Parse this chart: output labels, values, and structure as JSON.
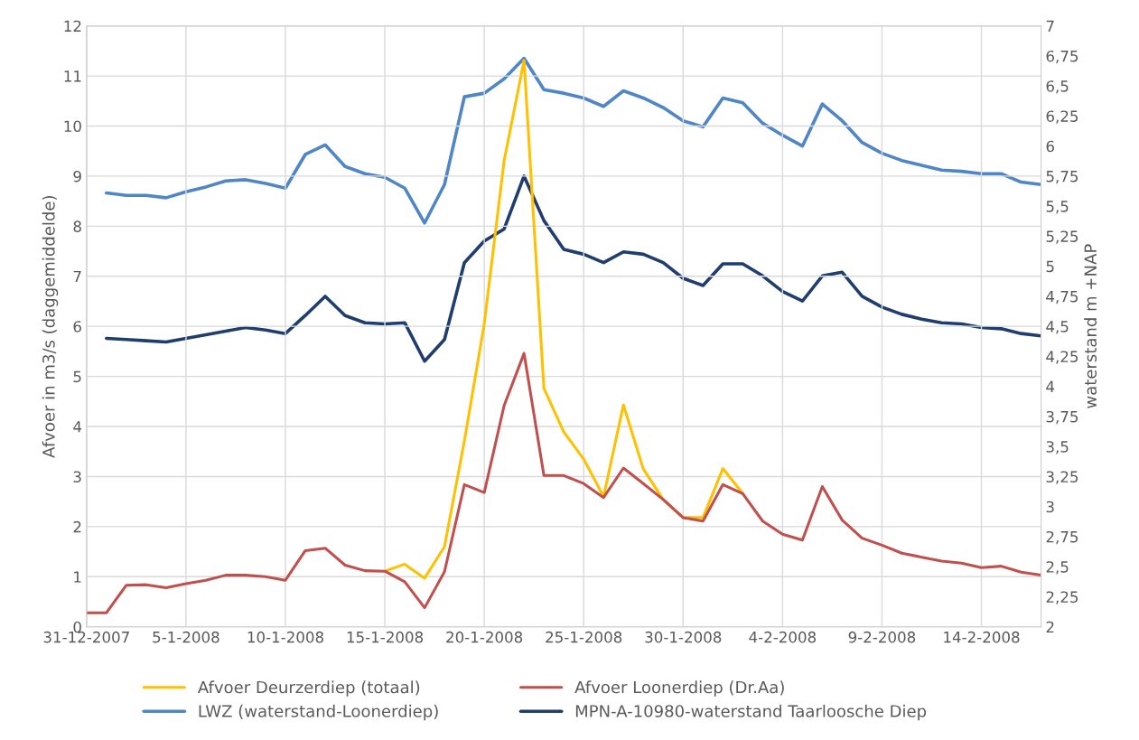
{
  "chart_data": {
    "type": "line",
    "ylabel": "Afvoer in m3/s (daggemiddelde)",
    "y2label": "waterstand m +NAP",
    "x": [
      "2007-12-31",
      "2008-01-01",
      "2008-01-02",
      "2008-01-03",
      "2008-01-04",
      "2008-01-05",
      "2008-01-06",
      "2008-01-07",
      "2008-01-08",
      "2008-01-09",
      "2008-01-10",
      "2008-01-11",
      "2008-01-12",
      "2008-01-13",
      "2008-01-14",
      "2008-01-15",
      "2008-01-16",
      "2008-01-17",
      "2008-01-18",
      "2008-01-19",
      "2008-01-20",
      "2008-01-21",
      "2008-01-22",
      "2008-01-23",
      "2008-01-24",
      "2008-01-25",
      "2008-01-26",
      "2008-01-27",
      "2008-01-28",
      "2008-01-29",
      "2008-01-30",
      "2008-01-31",
      "2008-02-01",
      "2008-02-02",
      "2008-02-03",
      "2008-02-04",
      "2008-02-05",
      "2008-02-06",
      "2008-02-07",
      "2008-02-08",
      "2008-02-09",
      "2008-02-10",
      "2008-02-11",
      "2008-02-12",
      "2008-02-13",
      "2008-02-14",
      "2008-02-15",
      "2008-02-16",
      "2008-02-17"
    ],
    "series": [
      {
        "name": "Afvoer Deurzerdiep (totaal)",
        "color": "#ffc000",
        "values": [
          null,
          null,
          null,
          null,
          null,
          null,
          null,
          null,
          null,
          null,
          null,
          null,
          null,
          null,
          null,
          1.11,
          1.25,
          0.97,
          1.6,
          3.71,
          6.05,
          9.31,
          11.31,
          4.76,
          3.89,
          3.35,
          2.6,
          4.43,
          3.15,
          2.54,
          2.18,
          2.18,
          3.16,
          2.66,
          null,
          null,
          null,
          null,
          null,
          null,
          null,
          null,
          null,
          null,
          null,
          null,
          null,
          null,
          null
        ]
      },
      {
        "name": "Afvoer Loonerdiep (Dr.Aa)",
        "color": "#c0504d",
        "values": [
          0.28,
          0.28,
          0.83,
          0.84,
          0.78,
          0.86,
          0.93,
          1.03,
          1.03,
          1.0,
          0.93,
          1.52,
          1.57,
          1.23,
          1.12,
          1.11,
          0.9,
          0.38,
          1.1,
          2.84,
          2.68,
          4.42,
          5.46,
          3.02,
          3.02,
          2.86,
          2.58,
          3.17,
          2.86,
          2.54,
          2.18,
          2.11,
          2.84,
          2.66,
          2.11,
          1.85,
          1.73,
          2.8,
          2.13,
          1.77,
          1.63,
          1.47,
          1.39,
          1.31,
          1.27,
          1.18,
          1.21,
          1.09,
          1.03
        ]
      },
      {
        "name": "LWZ (waterstand-Loonerdiep)",
        "color": "#4f86c6",
        "axis": "y2",
        "values": [
          null,
          5.61,
          5.59,
          5.59,
          5.57,
          5.62,
          5.66,
          5.71,
          5.72,
          5.69,
          5.65,
          5.93,
          6.01,
          5.83,
          5.77,
          5.74,
          5.65,
          5.36,
          5.68,
          6.41,
          6.44,
          6.56,
          6.73,
          6.47,
          6.44,
          6.4,
          6.33,
          6.46,
          6.4,
          6.32,
          6.21,
          6.16,
          6.4,
          6.36,
          6.19,
          6.09,
          6.0,
          6.35,
          6.21,
          6.03,
          5.94,
          5.88,
          5.84,
          5.8,
          5.79,
          5.77,
          5.77,
          5.7,
          5.68
        ]
      },
      {
        "name": "MPN-A-10980-waterstand Taarloosche Diep",
        "color": "#1f3d6e",
        "axis": "y2",
        "values": [
          null,
          4.4,
          4.39,
          4.38,
          4.37,
          4.4,
          4.43,
          4.46,
          4.49,
          4.47,
          4.44,
          4.59,
          4.75,
          4.59,
          4.53,
          4.52,
          4.53,
          4.21,
          4.39,
          5.03,
          5.21,
          5.31,
          5.75,
          5.38,
          5.14,
          5.1,
          5.03,
          5.12,
          5.1,
          5.03,
          4.9,
          4.84,
          5.02,
          5.02,
          4.92,
          4.79,
          4.71,
          4.92,
          4.95,
          4.75,
          4.66,
          4.6,
          4.56,
          4.53,
          4.52,
          4.49,
          4.48,
          4.44,
          4.42
        ]
      }
    ],
    "xlim": [
      "2007-12-31",
      "2008-02-17"
    ],
    "xticks": [
      {
        "value": "2007-12-31",
        "label": "31-12-2007"
      },
      {
        "value": "2008-01-05",
        "label": "5-1-2008"
      },
      {
        "value": "2008-01-10",
        "label": "10-1-2008"
      },
      {
        "value": "2008-01-15",
        "label": "15-1-2008"
      },
      {
        "value": "2008-01-20",
        "label": "20-1-2008"
      },
      {
        "value": "2008-01-25",
        "label": "25-1-2008"
      },
      {
        "value": "2008-01-30",
        "label": "30-1-2008"
      },
      {
        "value": "2008-02-04",
        "label": "4-2-2008"
      },
      {
        "value": "2008-02-09",
        "label": "9-2-2008"
      },
      {
        "value": "2008-02-14",
        "label": "14-2-2008"
      }
    ],
    "ylim": [
      0,
      12
    ],
    "yticks": [
      0,
      1,
      2,
      3,
      4,
      5,
      6,
      7,
      8,
      9,
      10,
      11,
      12
    ],
    "y2lim": [
      2,
      7
    ],
    "y2ticks": [
      2,
      {
        "value": 2.25,
        "label": "2,25"
      },
      {
        "value": 2.5,
        "label": "2,5"
      },
      {
        "value": 2.75,
        "label": "2,75"
      },
      3,
      {
        "value": 3.25,
        "label": "3,25"
      },
      {
        "value": 3.5,
        "label": "3,5"
      },
      {
        "value": 3.75,
        "label": "3,75"
      },
      4,
      {
        "value": 4.25,
        "label": "4,25"
      },
      {
        "value": 4.5,
        "label": "4,5"
      },
      {
        "value": 4.75,
        "label": "4,75"
      },
      5,
      {
        "value": 5.25,
        "label": "5,25"
      },
      {
        "value": 5.5,
        "label": "5,5"
      },
      {
        "value": 5.75,
        "label": "5,75"
      },
      6,
      {
        "value": 6.25,
        "label": "6,25"
      },
      {
        "value": 6.5,
        "label": "6,5"
      },
      {
        "value": 6.75,
        "label": "6,75"
      },
      7
    ],
    "grid": true,
    "legend": "bottom",
    "marker": "none",
    "line_style": "solid"
  }
}
